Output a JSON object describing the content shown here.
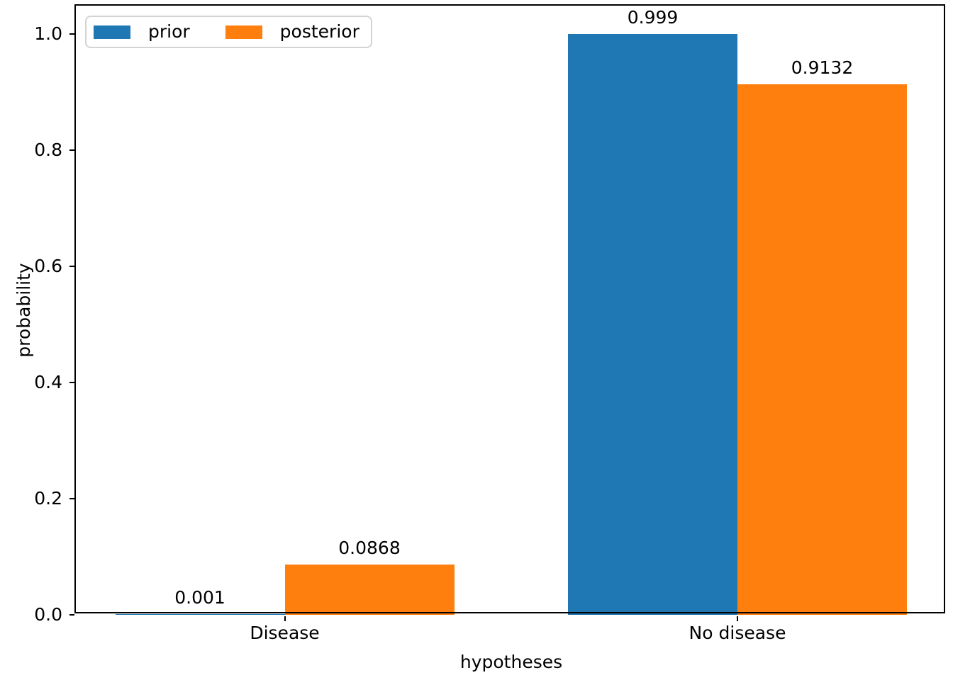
{
  "chart_data": {
    "type": "bar",
    "title": "",
    "xlabel": "hypotheses",
    "ylabel": "probability",
    "categories": [
      "Disease",
      "No disease"
    ],
    "series": [
      {
        "name": "prior",
        "color": "#1f77b4",
        "values": [
          0.001,
          0.999
        ],
        "value_labels": [
          "0.001",
          "0.999"
        ]
      },
      {
        "name": "posterior",
        "color": "#ff7f0e",
        "values": [
          0.0868,
          0.9132
        ],
        "value_labels": [
          "0.0868",
          "0.9132"
        ]
      }
    ],
    "ylim": [
      0,
      1.049
    ],
    "yticks": [
      {
        "value": 0.0,
        "label": "0.0"
      },
      {
        "value": 0.2,
        "label": "0.2"
      },
      {
        "value": 0.4,
        "label": "0.4"
      },
      {
        "value": 0.6,
        "label": "0.6"
      },
      {
        "value": 0.8,
        "label": "0.8"
      },
      {
        "value": 1.0,
        "label": "1.0"
      }
    ],
    "grid": false,
    "legend": {
      "position": "upper left",
      "entries": [
        "prior",
        "posterior"
      ]
    }
  }
}
